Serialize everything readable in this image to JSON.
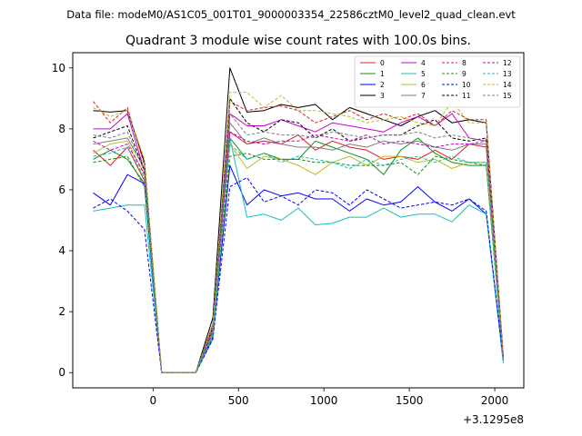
{
  "figure": {
    "suptitle": "Data file: modeM0/AS1C05_001T01_9000003354_22586cztM0_level2_quad_clean.evt"
  },
  "chart_data": {
    "type": "line",
    "title": "Quadrant 3 module wise count rates with 100.0s bins.",
    "xlabel": "",
    "ylabel": "",
    "x_offset_label": "+3.1295e8",
    "xlim": [
      -470,
      2170
    ],
    "ylim": [
      -0.5,
      10.5
    ],
    "xticks": [
      0,
      500,
      1000,
      1500,
      2000
    ],
    "yticks": [
      0,
      2,
      4,
      6,
      8,
      10
    ],
    "grid": false,
    "legend": {
      "placement": "top-right",
      "columns": 4
    },
    "x": [
      -350,
      -250,
      -150,
      -50,
      50,
      150,
      250,
      350,
      450,
      550,
      650,
      750,
      850,
      950,
      1050,
      1150,
      1250,
      1350,
      1450,
      1550,
      1650,
      1750,
      1850,
      1950,
      2050
    ],
    "series": [
      {
        "name": "0",
        "color": "#e41a1c",
        "dash": false,
        "values": [
          7.3,
          6.8,
          7.4,
          6.3,
          0,
          0,
          0,
          1.6,
          7.9,
          7.5,
          7.6,
          7.5,
          7.8,
          7.3,
          7.6,
          7.4,
          7.3,
          7.0,
          7.1,
          7.0,
          7.3,
          7.0,
          7.5,
          7.4,
          0.4
        ]
      },
      {
        "name": "1",
        "color": "#1a8c1a",
        "dash": false,
        "values": [
          7.0,
          7.3,
          7.0,
          6.2,
          0,
          0,
          0,
          1.4,
          7.7,
          7.0,
          7.2,
          7.0,
          7.0,
          7.6,
          7.4,
          7.2,
          7.0,
          6.5,
          7.3,
          7.7,
          7.2,
          6.9,
          6.8,
          6.8,
          0.4
        ]
      },
      {
        "name": "2",
        "color": "#0000ff",
        "dash": false,
        "values": [
          5.9,
          5.5,
          6.5,
          6.2,
          0,
          0,
          0,
          1.2,
          6.8,
          5.5,
          6.0,
          5.8,
          5.9,
          5.7,
          5.7,
          5.3,
          5.7,
          5.5,
          5.6,
          6.1,
          5.6,
          5.3,
          5.7,
          5.2,
          0.4
        ]
      },
      {
        "name": "3",
        "color": "#000000",
        "dash": false,
        "values": [
          8.6,
          8.55,
          8.6,
          6.9,
          0,
          0,
          0,
          1.8,
          10.0,
          8.55,
          8.6,
          8.8,
          8.7,
          8.8,
          8.3,
          8.7,
          8.5,
          8.3,
          8.1,
          8.4,
          8.6,
          8.2,
          8.3,
          8.2,
          0.5
        ]
      },
      {
        "name": "4",
        "color": "#cc00cc",
        "dash": false,
        "values": [
          8.0,
          8.0,
          8.5,
          6.6,
          0,
          0,
          0,
          1.5,
          8.5,
          8.1,
          8.1,
          8.3,
          8.1,
          7.9,
          8.2,
          8.1,
          8.0,
          7.9,
          8.2,
          8.4,
          8.1,
          8.5,
          7.7,
          7.6,
          0.4
        ]
      },
      {
        "name": "5",
        "color": "#17bebe",
        "dash": false,
        "values": [
          5.3,
          5.4,
          5.5,
          5.5,
          0,
          0,
          0,
          1.1,
          7.7,
          5.1,
          5.2,
          5.0,
          5.4,
          4.85,
          4.9,
          5.1,
          5.1,
          5.4,
          5.1,
          5.2,
          5.2,
          4.95,
          5.5,
          5.2,
          0.3
        ]
      },
      {
        "name": "6",
        "color": "#bcbd22",
        "dash": false,
        "values": [
          7.2,
          7.5,
          7.6,
          6.5,
          0,
          0,
          0,
          1.3,
          7.5,
          6.7,
          7.1,
          7.0,
          6.8,
          6.5,
          6.9,
          7.1,
          6.8,
          7.1,
          7.1,
          6.9,
          7.0,
          6.7,
          6.9,
          6.9,
          0.4
        ]
      },
      {
        "name": "7",
        "color": "#7f7f7f",
        "dash": false,
        "values": [
          7.5,
          7.6,
          7.7,
          6.7,
          0,
          0,
          0,
          1.5,
          8.2,
          7.5,
          7.7,
          7.5,
          7.4,
          7.4,
          7.3,
          7.5,
          7.4,
          7.6,
          7.5,
          7.6,
          7.4,
          7.3,
          7.5,
          7.5,
          0.4
        ]
      },
      {
        "name": "8",
        "color": "#e41a1c",
        "dash": true,
        "values": [
          8.9,
          8.2,
          8.7,
          6.8,
          0,
          0,
          0,
          1.6,
          8.9,
          8.6,
          8.7,
          8.75,
          8.6,
          8.2,
          8.4,
          8.6,
          8.3,
          8.5,
          8.3,
          8.5,
          8.1,
          8.6,
          8.3,
          8.3,
          0.5
        ]
      },
      {
        "name": "9",
        "color": "#1a8c1a",
        "dash": true,
        "values": [
          6.9,
          7.0,
          7.1,
          6.1,
          0,
          0,
          0,
          1.3,
          7.1,
          7.2,
          7.0,
          7.0,
          7.0,
          6.9,
          6.9,
          6.8,
          6.8,
          6.8,
          6.9,
          6.5,
          7.1,
          7.0,
          6.9,
          6.8,
          0.4
        ]
      },
      {
        "name": "10",
        "color": "#0000ff",
        "dash": true,
        "values": [
          5.4,
          5.7,
          5.3,
          4.7,
          0,
          0,
          0,
          1.1,
          6.1,
          6.4,
          5.6,
          5.8,
          5.5,
          6.0,
          5.9,
          5.5,
          6.0,
          5.7,
          5.4,
          5.5,
          5.6,
          5.5,
          5.7,
          5.3,
          0.4
        ]
      },
      {
        "name": "11",
        "color": "#000000",
        "dash": true,
        "values": [
          7.7,
          7.9,
          8.1,
          6.6,
          0,
          0,
          0,
          1.5,
          9.0,
          8.2,
          7.9,
          8.3,
          8.2,
          7.7,
          8.0,
          7.6,
          7.7,
          7.8,
          7.8,
          8.1,
          8.3,
          7.7,
          7.6,
          7.7,
          0.5
        ]
      },
      {
        "name": "12",
        "color": "#cc00cc",
        "dash": true,
        "values": [
          7.6,
          7.3,
          7.5,
          6.5,
          0,
          0,
          0,
          1.4,
          7.9,
          7.6,
          7.5,
          7.6,
          7.6,
          7.8,
          7.7,
          7.6,
          7.8,
          7.5,
          7.6,
          7.5,
          7.4,
          7.5,
          7.5,
          7.6,
          0.4
        ]
      },
      {
        "name": "13",
        "color": "#17bebe",
        "dash": true,
        "values": [
          7.1,
          7.2,
          7.4,
          6.4,
          0,
          0,
          0,
          1.2,
          7.5,
          7.0,
          7.2,
          6.9,
          7.1,
          7.0,
          6.9,
          6.7,
          7.0,
          6.8,
          7.0,
          7.1,
          6.9,
          7.1,
          6.9,
          6.9,
          0.4
        ]
      },
      {
        "name": "14",
        "color": "#bcbd22",
        "dash": true,
        "values": [
          8.7,
          8.4,
          8.6,
          7.0,
          0,
          0,
          0,
          1.6,
          9.2,
          9.2,
          8.7,
          9.1,
          8.6,
          8.6,
          8.5,
          8.4,
          8.2,
          8.3,
          8.4,
          8.2,
          8.1,
          8.9,
          8.2,
          8.2,
          0.5
        ]
      },
      {
        "name": "15",
        "color": "#7f7f7f",
        "dash": true,
        "values": [
          7.8,
          7.7,
          7.9,
          6.6,
          0,
          0,
          0,
          1.5,
          8.5,
          7.8,
          7.9,
          7.8,
          7.8,
          7.7,
          7.9,
          7.8,
          7.7,
          7.8,
          7.8,
          7.9,
          7.7,
          7.8,
          7.7,
          7.6,
          0.4
        ]
      }
    ]
  }
}
